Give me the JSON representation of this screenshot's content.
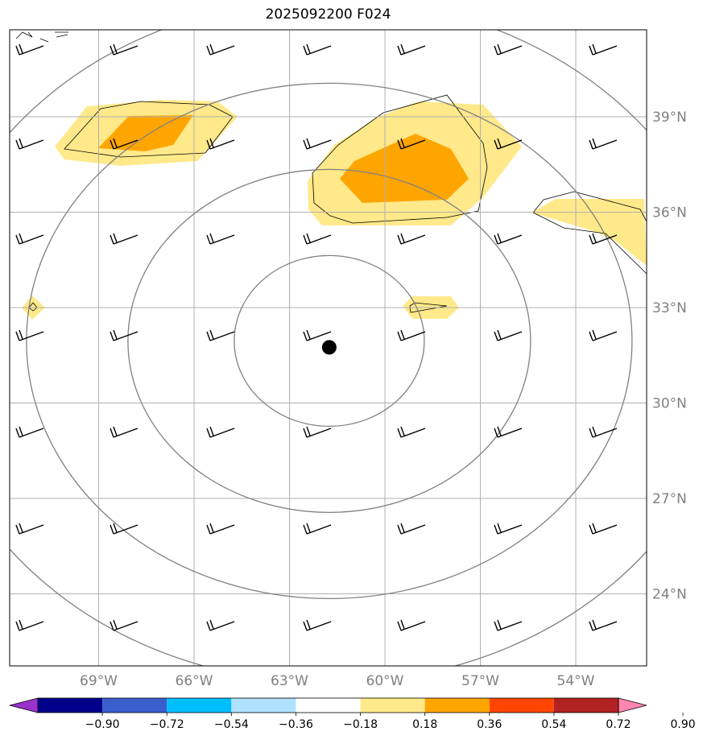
{
  "title": "2025092200 F024",
  "map": {
    "lat_labels": [
      {
        "lat": 39,
        "text": "39°N"
      },
      {
        "lat": 36,
        "text": "36°N"
      },
      {
        "lat": 33,
        "text": "33°N"
      },
      {
        "lat": 30,
        "text": "30°N"
      },
      {
        "lat": 27,
        "text": "27°N"
      },
      {
        "lat": 24,
        "text": "24°N"
      }
    ],
    "lon_labels": [
      {
        "lon": -69,
        "text": "69°W"
      },
      {
        "lon": -66,
        "text": "66°W"
      },
      {
        "lon": -63,
        "text": "63°W"
      },
      {
        "lon": -60,
        "text": "60°W"
      },
      {
        "lon": -57,
        "text": "57°W"
      },
      {
        "lon": -54,
        "text": "54°W"
      }
    ],
    "grid_color": "#b0b0b0",
    "label_color": "#808080",
    "storm_center": {
      "lon": -61.75,
      "lat": 31.75
    },
    "range_ring_color": "#808080"
  },
  "colorbar": {
    "ticks": [
      "−0.90",
      "−0.72",
      "−0.54",
      "−0.36",
      "−0.18",
      "0.18",
      "0.36",
      "0.54",
      "0.72",
      "0.90"
    ],
    "colors": [
      "#9932cc",
      "#00008b",
      "#3a5fcd",
      "#00bfff",
      "#b0e2ff",
      "#ffffff",
      "#ffe98a",
      "#ffa500",
      "#ff4500",
      "#b22222",
      "#ff86b0"
    ],
    "shading": {
      "low": "#ffe98a",
      "high": "#ffa500"
    }
  }
}
